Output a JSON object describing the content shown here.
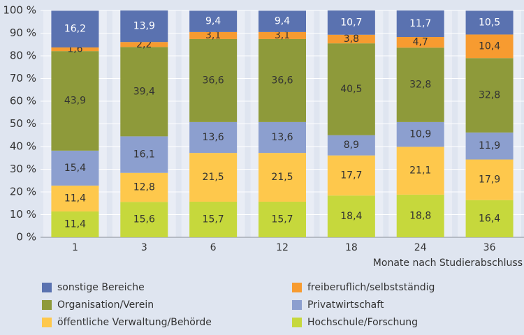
{
  "chart_data": {
    "type": "stacked-bar",
    "x_label": "Monate nach Studierabschluss",
    "categories": [
      "1",
      "3",
      "6",
      "12",
      "18",
      "24",
      "36"
    ],
    "series": [
      {
        "name": "Hochschule/Forschung",
        "color": "#c6d83c",
        "values": [
          11.4,
          15.6,
          15.7,
          15.7,
          18.4,
          18.8,
          16.4
        ],
        "value_labels": [
          "11,4",
          "15,6",
          "15,7",
          "15,7",
          "18,4",
          "18,8",
          "16,4"
        ]
      },
      {
        "name": "öffentliche Verwaltung/Behörde",
        "color": "#fec84c",
        "values": [
          11.4,
          12.8,
          21.5,
          21.5,
          17.7,
          21.1,
          17.9
        ],
        "value_labels": [
          "11,4",
          "12,8",
          "21,5",
          "21,5",
          "17,7",
          "21,1",
          "17,9"
        ]
      },
      {
        "name": "Privatwirtschaft",
        "color": "#8c9fcf",
        "values": [
          15.4,
          16.1,
          13.6,
          13.6,
          8.9,
          10.9,
          11.9
        ],
        "value_labels": [
          "15,4",
          "16,1",
          "13,6",
          "13,6",
          "8,9",
          "10,9",
          "11,9"
        ]
      },
      {
        "name": "Organisation/Verein",
        "color": "#8e9a3a",
        "values": [
          43.9,
          39.4,
          36.6,
          36.6,
          40.5,
          32.8,
          32.8
        ],
        "value_labels": [
          "43,9",
          "39,4",
          "36,6",
          "36,6",
          "40,5",
          "32,8",
          "32,8"
        ]
      },
      {
        "name": "freiberuflich/selbstständig",
        "color": "#f79b30",
        "values": [
          1.6,
          2.2,
          3.1,
          3.1,
          3.8,
          4.7,
          10.4
        ],
        "value_labels": [
          "1,6",
          "2,2",
          "3,1",
          "3,1",
          "3,8",
          "4,7",
          "10,4"
        ]
      },
      {
        "name": "sonstige Bereiche",
        "color": "#5a72b0",
        "values": [
          16.2,
          13.9,
          9.4,
          9.4,
          10.7,
          11.7,
          10.5
        ],
        "value_labels": [
          "16,2",
          "13,9",
          "9,4",
          "9,4",
          "10,7",
          "11,7",
          "10,5"
        ]
      }
    ],
    "ylim": [
      0,
      100
    ],
    "yticks": [
      {
        "value": 0,
        "label": "0 %"
      },
      {
        "value": 10,
        "label": "10 %"
      },
      {
        "value": 20,
        "label": "20 %"
      },
      {
        "value": 30,
        "label": "30 %"
      },
      {
        "value": 40,
        "label": "40 %"
      },
      {
        "value": 50,
        "label": "50 %"
      },
      {
        "value": 60,
        "label": "60 %"
      },
      {
        "value": 70,
        "label": "70 %"
      },
      {
        "value": 80,
        "label": "80 %"
      },
      {
        "value": 90,
        "label": "90 %"
      },
      {
        "value": 100,
        "label": "100 %"
      }
    ],
    "grid": true
  }
}
